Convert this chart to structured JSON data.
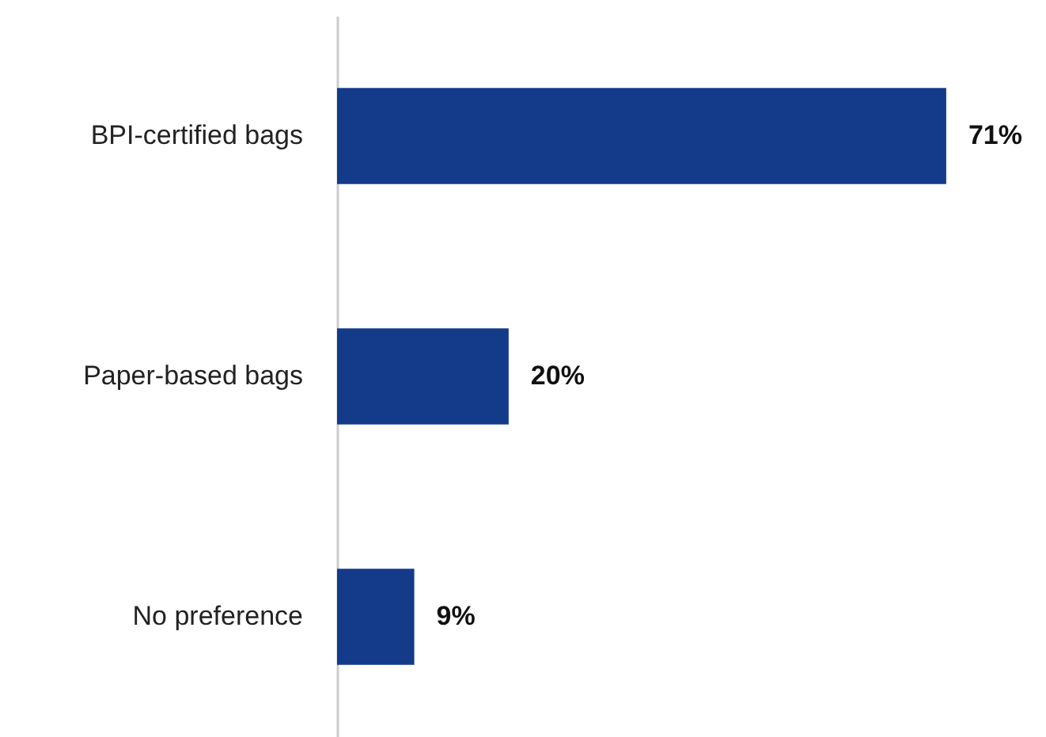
{
  "chart_data": {
    "type": "bar",
    "orientation": "horizontal",
    "categories": [
      "BPI-certified bags",
      "Paper-based bags",
      "No preference"
    ],
    "values": [
      71,
      20,
      9
    ],
    "color": "#133b8a",
    "data_labels": true,
    "value_labels": [
      "71%",
      "20%",
      "9%"
    ],
    "grid": false
  }
}
